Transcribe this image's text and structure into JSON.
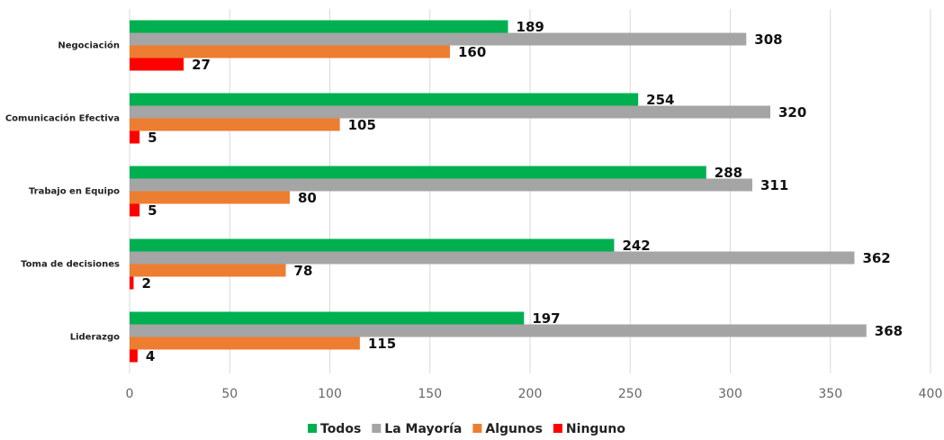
{
  "chart_data": {
    "type": "hbar",
    "categories": [
      "Negociación",
      "Comunicación Efectiva",
      "Trabajo en Equipo",
      "Toma de decisiones",
      "Liderazgo"
    ],
    "series": [
      {
        "name": "Todos",
        "color": "#00b050",
        "values": [
          189,
          254,
          288,
          242,
          197
        ]
      },
      {
        "name": "La Mayoría",
        "color": "#a5a5a5",
        "values": [
          308,
          320,
          311,
          362,
          368
        ]
      },
      {
        "name": "Algunos",
        "color": "#ed7d31",
        "values": [
          160,
          105,
          80,
          78,
          115
        ]
      },
      {
        "name": "Ninguno",
        "color": "#ff0000",
        "values": [
          27,
          5,
          5,
          2,
          4
        ]
      }
    ],
    "xlim": [
      0,
      400
    ],
    "xticks": [
      0,
      50,
      100,
      150,
      200,
      250,
      300,
      350,
      400
    ],
    "grid": true,
    "legend": "bottom"
  }
}
